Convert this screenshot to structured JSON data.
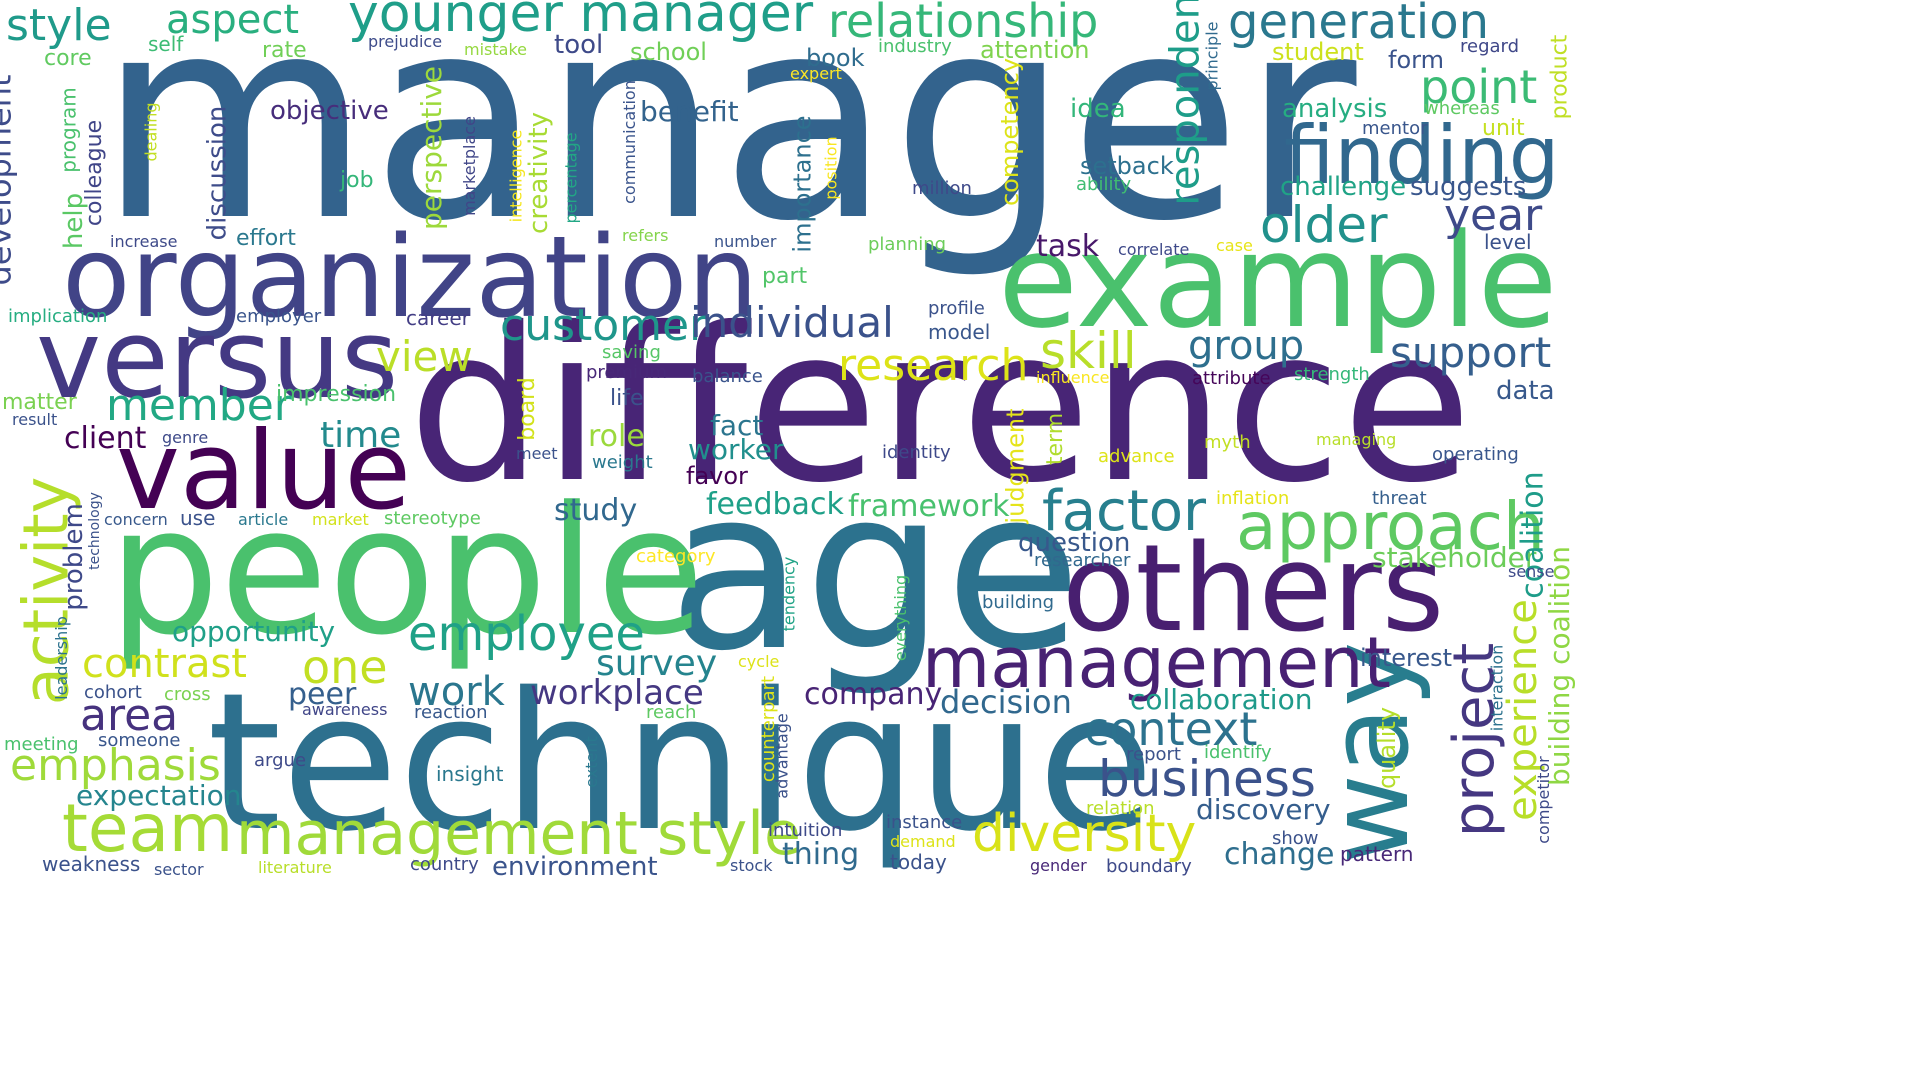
{
  "words": [
    {
      "text": "manager",
      "color": "#33638d"
    },
    {
      "text": "difference",
      "color": "#482576"
    },
    {
      "text": "age",
      "color": "#2c728e"
    },
    {
      "text": "technique",
      "color": "#2d708e"
    },
    {
      "text": "people",
      "color": "#4ac16d"
    },
    {
      "text": "example",
      "color": "#4ac16d"
    },
    {
      "text": "organization",
      "color": "#414487"
    },
    {
      "text": "versus",
      "color": "#443983"
    },
    {
      "text": "others",
      "color": "#481f70"
    },
    {
      "text": "value",
      "color": "#440154"
    },
    {
      "text": "way",
      "color": "#287d8e"
    },
    {
      "text": "finding",
      "color": "#31688e"
    },
    {
      "text": "management",
      "color": "#482173"
    },
    {
      "text": "approach",
      "color": "#5ec962"
    },
    {
      "text": "management style",
      "color": "#a0da39"
    },
    {
      "text": "team",
      "color": "#a5db36"
    },
    {
      "text": "activity",
      "color": "#b5de2b"
    },
    {
      "text": "younger manager",
      "color": "#1f9e89"
    },
    {
      "text": "relationship",
      "color": "#35b779"
    },
    {
      "text": "generation",
      "color": "#2a788e"
    },
    {
      "text": "factor",
      "color": "#277f8e"
    },
    {
      "text": "business",
      "color": "#3b528b"
    },
    {
      "text": "diversity",
      "color": "#d8e219"
    },
    {
      "text": "project",
      "color": "#453781"
    },
    {
      "text": "older",
      "color": "#21918c"
    },
    {
      "text": "customer",
      "color": "#1f968b"
    },
    {
      "text": "individual",
      "color": "#3b528b"
    },
    {
      "text": "research",
      "color": "#dde318"
    },
    {
      "text": "employee",
      "color": "#1fa187"
    },
    {
      "text": "context",
      "color": "#2c728e"
    },
    {
      "text": "skill",
      "color": "#b8de29"
    },
    {
      "text": "style",
      "color": "#1f9a8a"
    },
    {
      "text": "aspect",
      "color": "#29af7f"
    },
    {
      "text": "point",
      "color": "#3bbb75"
    },
    {
      "text": "support",
      "color": "#355f8d"
    },
    {
      "text": "emphasis",
      "color": "#9fda3a"
    },
    {
      "text": "contrast",
      "color": "#d0e11c"
    },
    {
      "text": "one",
      "color": "#c2df23"
    },
    {
      "text": "member",
      "color": "#22a884"
    },
    {
      "text": "area",
      "color": "#46327e"
    },
    {
      "text": "view",
      "color": "#bade28"
    },
    {
      "text": "group",
      "color": "#2e6f8e"
    },
    {
      "text": "year",
      "color": "#3e4a89"
    },
    {
      "text": "respondent",
      "color": "#1e9d89"
    },
    {
      "text": "development",
      "color": "#3e4c8a"
    },
    {
      "text": "experience",
      "color": "#b8de29"
    },
    {
      "text": "work",
      "color": "#2a768e"
    },
    {
      "text": "workplace",
      "color": "#453882"
    },
    {
      "text": "survey",
      "color": "#25848e"
    },
    {
      "text": "time",
      "color": "#238a8d"
    },
    {
      "text": "framework",
      "color": "#48c16e"
    },
    {
      "text": "feedback",
      "color": "#1fa088"
    },
    {
      "text": "decision",
      "color": "#31688e"
    },
    {
      "text": "opportunity",
      "color": "#1fa088"
    },
    {
      "text": "expectation",
      "color": "#25858e"
    },
    {
      "text": "change",
      "color": "#2e6e8e"
    },
    {
      "text": "discovery",
      "color": "#355e8d"
    },
    {
      "text": "environment",
      "color": "#3a548c"
    },
    {
      "text": "thing",
      "color": "#306a8e"
    },
    {
      "text": "company",
      "color": "#482475"
    },
    {
      "text": "client",
      "color": "#440154"
    },
    {
      "text": "study",
      "color": "#31688e"
    },
    {
      "text": "question",
      "color": "#38588c"
    },
    {
      "text": "collaboration",
      "color": "#1f9a8a"
    },
    {
      "text": "stakeholder",
      "color": "#6ccd5a"
    },
    {
      "text": "coalition",
      "color": "#1e9c89"
    },
    {
      "text": "building coalition",
      "color": "#8fd744"
    },
    {
      "text": "interest",
      "color": "#38588c"
    },
    {
      "text": "data",
      "color": "#38598c"
    },
    {
      "text": "suggests",
      "color": "#39568c"
    },
    {
      "text": "challenge",
      "color": "#20a386"
    },
    {
      "text": "analysis",
      "color": "#26ad81"
    },
    {
      "text": "task",
      "color": "#48186a"
    },
    {
      "text": "role",
      "color": "#9bd93c"
    },
    {
      "text": "fact",
      "color": "#2b758e"
    },
    {
      "text": "worker",
      "color": "#218f8d"
    },
    {
      "text": "favor",
      "color": "#440154"
    },
    {
      "text": "peer",
      "color": "#355f8d"
    },
    {
      "text": "problem",
      "color": "#3e4989"
    },
    {
      "text": "help",
      "color": "#5ac864"
    },
    {
      "text": "colleague",
      "color": "#404588"
    },
    {
      "text": "discussion",
      "color": "#3e4c8a"
    },
    {
      "text": "perspective",
      "color": "#9dd93b"
    },
    {
      "text": "creativity",
      "color": "#a8db34"
    },
    {
      "text": "competency",
      "color": "#dde318"
    },
    {
      "text": "importance",
      "color": "#2d708e"
    },
    {
      "text": "judgment",
      "color": "#e5e419"
    },
    {
      "text": "quality",
      "color": "#b5de2b"
    },
    {
      "text": "term",
      "color": "#b0dd2f"
    },
    {
      "text": "board",
      "color": "#d2e21b"
    },
    {
      "text": "idea",
      "color": "#33b67a"
    },
    {
      "text": "objective",
      "color": "#472d7b"
    },
    {
      "text": "benefit",
      "color": "#33638d"
    },
    {
      "text": "tool",
      "color": "#3e4a89"
    },
    {
      "text": "school",
      "color": "#70cf57"
    },
    {
      "text": "attention",
      "color": "#7fd34e"
    },
    {
      "text": "student",
      "color": "#cde11d"
    },
    {
      "text": "form",
      "color": "#3a538b"
    },
    {
      "text": "regard",
      "color": "#3f4788"
    },
    {
      "text": "product",
      "color": "#c0df25"
    },
    {
      "text": "unit",
      "color": "#c5e021"
    },
    {
      "text": "mentor",
      "color": "#39568c"
    },
    {
      "text": "whereas",
      "color": "#5ec962"
    },
    {
      "text": "principle",
      "color": "#306a8e"
    },
    {
      "text": "industry",
      "color": "#4ac16d"
    },
    {
      "text": "book",
      "color": "#2f6c8e"
    },
    {
      "text": "expert",
      "color": "#fde725"
    },
    {
      "text": "setback",
      "color": "#2d708e"
    },
    {
      "text": "ability",
      "color": "#40bd72"
    },
    {
      "text": "million",
      "color": "#3e4989"
    },
    {
      "text": "position",
      "color": "#f8e621"
    },
    {
      "text": "planning",
      "color": "#6ccd5a"
    },
    {
      "text": "correlate",
      "color": "#3e4989"
    },
    {
      "text": "case",
      "color": "#e7e419"
    },
    {
      "text": "level",
      "color": "#3b528b"
    },
    {
      "text": "rate",
      "color": "#70cf57"
    },
    {
      "text": "self",
      "color": "#3dbc74"
    },
    {
      "text": "prejudice",
      "color": "#3e4c8a"
    },
    {
      "text": "mistake",
      "color": "#95d840"
    },
    {
      "text": "core",
      "color": "#60ca60"
    },
    {
      "text": "program",
      "color": "#4ac16d"
    },
    {
      "text": "dealing",
      "color": "#c2df23"
    },
    {
      "text": "job",
      "color": "#34b679"
    },
    {
      "text": "increase",
      "color": "#3e4a89"
    },
    {
      "text": "effort",
      "color": "#2a788e"
    },
    {
      "text": "marketplace",
      "color": "#404688"
    },
    {
      "text": "intelligence",
      "color": "#f4e61e"
    },
    {
      "text": "percentage",
      "color": "#22a785"
    },
    {
      "text": "communication",
      "color": "#3a548c"
    },
    {
      "text": "refers",
      "color": "#84d44b"
    },
    {
      "text": "number",
      "color": "#3a548c"
    },
    {
      "text": "part",
      "color": "#52c569"
    },
    {
      "text": "profile",
      "color": "#3b528b"
    },
    {
      "text": "model",
      "color": "#39568c"
    },
    {
      "text": "career",
      "color": "#433e85"
    },
    {
      "text": "implication",
      "color": "#26ad81"
    },
    {
      "text": "employer",
      "color": "#3a548c"
    },
    {
      "text": "saving",
      "color": "#56c667"
    },
    {
      "text": "premium",
      "color": "#482878"
    },
    {
      "text": "balance",
      "color": "#3a548c"
    },
    {
      "text": "influence",
      "color": "#f8e621"
    },
    {
      "text": "attribute",
      "color": "#450559"
    },
    {
      "text": "strength",
      "color": "#35b779"
    },
    {
      "text": "life",
      "color": "#3b528b"
    },
    {
      "text": "impression",
      "color": "#4ac16d"
    },
    {
      "text": "matter",
      "color": "#7ad151"
    },
    {
      "text": "result",
      "color": "#3b528b"
    },
    {
      "text": "genre",
      "color": "#3e4a89"
    },
    {
      "text": "identity",
      "color": "#3e4989"
    },
    {
      "text": "myth",
      "color": "#c2df23"
    },
    {
      "text": "managing",
      "color": "#b8de29"
    },
    {
      "text": "operating",
      "color": "#39568c"
    },
    {
      "text": "meet",
      "color": "#3b528b"
    },
    {
      "text": "weight",
      "color": "#2a788e"
    },
    {
      "text": "advance",
      "color": "#dde318"
    },
    {
      "text": "inflation",
      "color": "#e5e419"
    },
    {
      "text": "threat",
      "color": "#355f8d"
    },
    {
      "text": "concern",
      "color": "#38598c"
    },
    {
      "text": "use",
      "color": "#3b528b"
    },
    {
      "text": "article",
      "color": "#2a788e"
    },
    {
      "text": "market",
      "color": "#d2e21b"
    },
    {
      "text": "stereotype",
      "color": "#5ec962"
    },
    {
      "text": "technology",
      "color": "#3b528b"
    },
    {
      "text": "category",
      "color": "#fde725"
    },
    {
      "text": "researcher",
      "color": "#31688e"
    },
    {
      "text": "sense",
      "color": "#3e4a89"
    },
    {
      "text": "tendency",
      "color": "#20a386"
    },
    {
      "text": "everything",
      "color": "#4ac16d"
    },
    {
      "text": "building",
      "color": "#306a8e"
    },
    {
      "text": "leadership",
      "color": "#2c728e"
    },
    {
      "text": "cohort",
      "color": "#3b528b"
    },
    {
      "text": "cross",
      "color": "#7ad151"
    },
    {
      "text": "cycle",
      "color": "#dde318"
    },
    {
      "text": "interaction",
      "color": "#2c728e"
    },
    {
      "text": "awareness",
      "color": "#404688"
    },
    {
      "text": "reaction",
      "color": "#38598c"
    },
    {
      "text": "reach",
      "color": "#5ec962"
    },
    {
      "text": "meeting",
      "color": "#4ac16d"
    },
    {
      "text": "someone",
      "color": "#39568c"
    },
    {
      "text": "advantage",
      "color": "#3b528b"
    },
    {
      "text": "counterpart",
      "color": "#dde318"
    },
    {
      "text": "argue",
      "color": "#3e4a89"
    },
    {
      "text": "insight",
      "color": "#2a788e"
    },
    {
      "text": "extent",
      "color": "#2a788e"
    },
    {
      "text": "report",
      "color": "#3b528b"
    },
    {
      "text": "identify",
      "color": "#4ac16d"
    },
    {
      "text": "relation",
      "color": "#b8de29"
    },
    {
      "text": "intuition",
      "color": "#3e4a89"
    },
    {
      "text": "instance",
      "color": "#3b528b"
    },
    {
      "text": "demand",
      "color": "#dde318"
    },
    {
      "text": "show",
      "color": "#3b528b"
    },
    {
      "text": "competitor",
      "color": "#3e4a89"
    },
    {
      "text": "weakness",
      "color": "#3b528b"
    },
    {
      "text": "sector",
      "color": "#3b528b"
    },
    {
      "text": "literature",
      "color": "#b8de29"
    },
    {
      "text": "country",
      "color": "#3e4a89"
    },
    {
      "text": "stock",
      "color": "#3b528b"
    },
    {
      "text": "today",
      "color": "#3b528b"
    },
    {
      "text": "gender",
      "color": "#482878"
    },
    {
      "text": "boundary",
      "color": "#3e4a89"
    },
    {
      "text": "pattern",
      "color": "#482878"
    }
  ]
}
